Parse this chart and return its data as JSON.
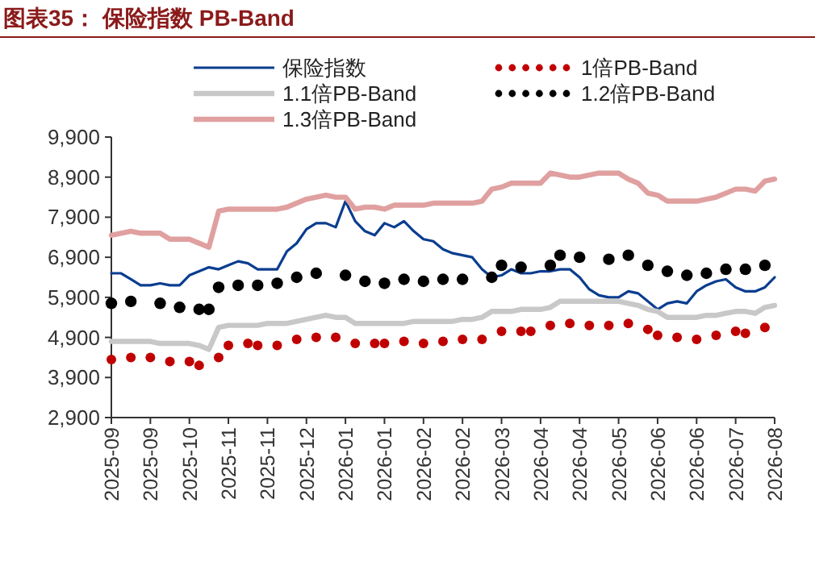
{
  "chart_data": {
    "type": "line",
    "title": "图表35： 保险指数 PB-Band",
    "ylim": [
      2900,
      9900
    ],
    "categories": [
      "2025-09",
      null,
      null,
      null,
      "2025-09",
      null,
      null,
      null,
      "2025-10",
      null,
      null,
      null,
      "2025-11",
      null,
      null,
      null,
      "2025-11",
      null,
      null,
      null,
      "2025-12",
      null,
      null,
      null,
      "2026-01",
      null,
      null,
      null,
      "2026-01",
      null,
      null,
      null,
      "2026-02",
      null,
      null,
      null,
      "2026-02",
      null,
      null,
      null,
      "2026-03",
      null,
      null,
      null,
      "2026-04",
      null,
      null,
      null,
      "2026-04",
      null,
      null,
      null,
      "2026-05",
      null,
      null,
      null,
      "2026-06",
      null,
      null,
      null,
      "2026-06",
      null,
      null,
      null,
      "2026-07",
      null,
      null,
      null,
      "2026-08"
    ],
    "yticks": [
      {
        "value": 2900,
        "label": "2,900"
      },
      {
        "value": 3900,
        "label": "3,900"
      },
      {
        "value": 4900,
        "label": "4,900"
      },
      {
        "value": 5900,
        "label": "5,900"
      },
      {
        "value": 6900,
        "label": "6,900"
      },
      {
        "value": 7900,
        "label": "7,900"
      },
      {
        "value": 8900,
        "label": "8,900"
      },
      {
        "value": 9900,
        "label": "9,900"
      }
    ],
    "legend": "top",
    "grid": false,
    "series": [
      {
        "name": "保险指数",
        "color": "#0a3d8f",
        "values": [
          6500,
          6500,
          6350,
          6200,
          6200,
          6250,
          6200,
          6200,
          6450,
          6550,
          6650,
          6600,
          6700,
          6800,
          6750,
          6600,
          6600,
          6600,
          7050,
          7250,
          7600,
          7750,
          7750,
          7650,
          8300,
          7800,
          7550,
          7450,
          7750,
          7650,
          7800,
          7550,
          7350,
          7300,
          7100,
          7000,
          6950,
          6900,
          6600,
          6400,
          6450,
          6600,
          6500,
          6500,
          6550,
          6550,
          6600,
          6600,
          6400,
          6100,
          5950,
          5900,
          5900,
          6050,
          6000,
          5800,
          5600,
          5750,
          5800,
          5750,
          6050,
          6200,
          6300,
          6350,
          6150,
          6050,
          6050,
          6150,
          6400
        ]
      },
      {
        "name": "1倍PB-Band",
        "type": "scatter",
        "color": "#c00000",
        "values": [
          4350,
          null,
          4400,
          null,
          4400,
          null,
          4300,
          null,
          4300,
          4200,
          null,
          4400,
          4700,
          null,
          4750,
          4700,
          null,
          4700,
          null,
          4850,
          null,
          4900,
          null,
          4900,
          null,
          4750,
          null,
          4750,
          4750,
          null,
          4800,
          null,
          4750,
          null,
          4800,
          null,
          4850,
          null,
          4850,
          null,
          5050,
          null,
          5050,
          5050,
          null,
          5200,
          null,
          5250,
          null,
          5200,
          null,
          5200,
          null,
          5250,
          null,
          5100,
          4950,
          null,
          4900,
          null,
          4850,
          null,
          4950,
          null,
          5050,
          5000,
          null,
          5150,
          null
        ]
      },
      {
        "name": "1.1倍PB-Band",
        "color": "#c8c8c8",
        "values": [
          4800,
          4800,
          4800,
          4800,
          4800,
          4750,
          4750,
          4750,
          4750,
          4700,
          4600,
          5150,
          5200,
          5200,
          5200,
          5200,
          5250,
          5250,
          5250,
          5300,
          5350,
          5400,
          5450,
          5400,
          5400,
          5250,
          5250,
          5250,
          5250,
          5250,
          5250,
          5300,
          5300,
          5300,
          5300,
          5300,
          5350,
          5350,
          5400,
          5550,
          5550,
          5550,
          5600,
          5600,
          5600,
          5650,
          5800,
          5800,
          5800,
          5800,
          5800,
          5800,
          5800,
          5750,
          5700,
          5600,
          5550,
          5400,
          5400,
          5400,
          5400,
          5450,
          5450,
          5500,
          5550,
          5550,
          5500,
          5650,
          5700
        ]
      },
      {
        "name": "1.2倍PB-Band",
        "type": "scatter",
        "color": "#000000",
        "values": [
          5750,
          null,
          5800,
          null,
          null,
          5750,
          null,
          5650,
          null,
          5600,
          5600,
          6150,
          null,
          6200,
          null,
          6200,
          null,
          6250,
          null,
          6400,
          null,
          6500,
          null,
          null,
          6450,
          null,
          6300,
          null,
          6250,
          null,
          6350,
          null,
          6300,
          null,
          6350,
          null,
          6350,
          null,
          null,
          6400,
          6700,
          null,
          6650,
          null,
          null,
          6700,
          6950,
          null,
          6900,
          null,
          null,
          6850,
          null,
          6950,
          null,
          6700,
          null,
          6550,
          null,
          6450,
          null,
          6500,
          null,
          6600,
          null,
          6600,
          null,
          6700,
          null
        ]
      },
      {
        "name": "1.3倍PB-Band",
        "color": "#e0a0a0",
        "values": [
          7450,
          7500,
          7550,
          7500,
          7500,
          7500,
          7350,
          7350,
          7350,
          7250,
          7150,
          8050,
          8100,
          8100,
          8100,
          8100,
          8100,
          8100,
          8150,
          8250,
          8350,
          8400,
          8450,
          8400,
          8400,
          8100,
          8150,
          8150,
          8100,
          8200,
          8200,
          8200,
          8200,
          8250,
          8250,
          8250,
          8250,
          8250,
          8300,
          8600,
          8650,
          8750,
          8750,
          8750,
          8750,
          9000,
          8950,
          8900,
          8900,
          8950,
          9000,
          9000,
          9000,
          8850,
          8750,
          8500,
          8450,
          8300,
          8300,
          8300,
          8300,
          8350,
          8400,
          8500,
          8600,
          8600,
          8550,
          8800,
          8850
        ]
      }
    ]
  }
}
